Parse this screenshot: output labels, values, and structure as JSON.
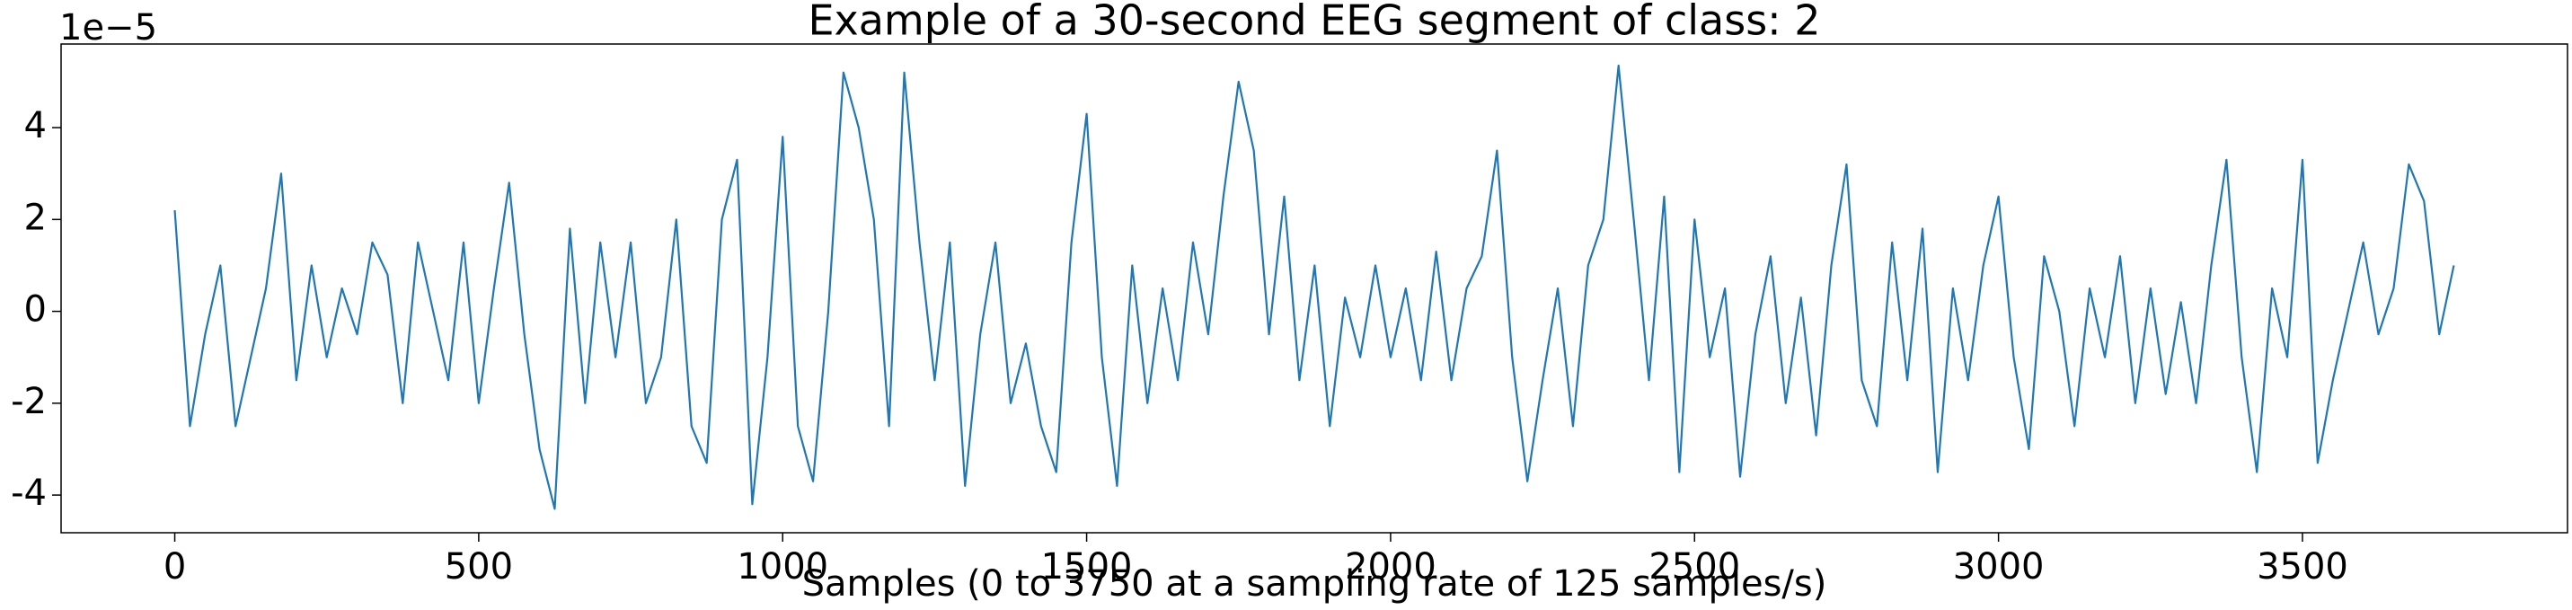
{
  "chart_data": {
    "type": "line",
    "title": "Example of a 30-second EEG segment of class: 2",
    "xlabel": "Samples (0 to 3750 at a sampling rate of 125 samples/s)",
    "y_offset_text": "1e−5",
    "x": [
      0,
      25,
      50,
      75,
      100,
      125,
      150,
      175,
      200,
      225,
      250,
      275,
      300,
      325,
      350,
      375,
      400,
      425,
      450,
      475,
      500,
      525,
      550,
      575,
      600,
      625,
      650,
      675,
      700,
      725,
      750,
      775,
      800,
      825,
      850,
      875,
      900,
      925,
      950,
      975,
      1000,
      1025,
      1050,
      1075,
      1100,
      1125,
      1150,
      1175,
      1200,
      1225,
      1250,
      1275,
      1300,
      1325,
      1350,
      1375,
      1400,
      1425,
      1450,
      1475,
      1500,
      1525,
      1550,
      1575,
      1600,
      1625,
      1650,
      1675,
      1700,
      1725,
      1750,
      1775,
      1800,
      1825,
      1850,
      1875,
      1900,
      1925,
      1950,
      1975,
      2000,
      2025,
      2050,
      2075,
      2100,
      2125,
      2150,
      2175,
      2200,
      2225,
      2250,
      2275,
      2300,
      2325,
      2350,
      2375,
      2400,
      2425,
      2450,
      2475,
      2500,
      2525,
      2550,
      2575,
      2600,
      2625,
      2650,
      2675,
      2700,
      2725,
      2750,
      2775,
      2800,
      2825,
      2850,
      2875,
      2900,
      2925,
      2950,
      2975,
      3000,
      3025,
      3050,
      3075,
      3100,
      3125,
      3150,
      3175,
      3200,
      3225,
      3250,
      3275,
      3300,
      3325,
      3350,
      3375,
      3400,
      3425,
      3450,
      3475,
      3500,
      3525,
      3550,
      3575,
      3600,
      3625,
      3650,
      3675,
      3700,
      3725,
      3749
    ],
    "series": [
      {
        "color": "#1f77b4",
        "values": [
          2.2,
          -2.5,
          -0.5,
          1.0,
          -2.5,
          -1.0,
          0.5,
          3.0,
          -1.5,
          1.0,
          -1.0,
          0.5,
          -0.5,
          1.5,
          0.8,
          -2.0,
          1.5,
          0,
          -1.5,
          1.5,
          -2.0,
          0.5,
          2.8,
          -0.5,
          -3.0,
          -4.3,
          1.8,
          -2.0,
          1.5,
          -1.0,
          1.5,
          -2.0,
          -1.0,
          2.0,
          -2.5,
          -3.3,
          2.0,
          3.3,
          -4.2,
          -1.0,
          3.8,
          -2.5,
          -3.7,
          0,
          5.2,
          4.0,
          2.0,
          -2.5,
          5.2,
          1.5,
          -1.5,
          1.5,
          -3.8,
          -0.5,
          1.5,
          -2.0,
          -0.7,
          -2.5,
          -3.5,
          1.5,
          4.3,
          -1.0,
          -3.8,
          1.0,
          -2.0,
          0.5,
          -1.5,
          1.5,
          -0.5,
          2.5,
          5.0,
          3.5,
          -0.5,
          2.5,
          -1.5,
          1.0,
          -2.5,
          0.3,
          -1.0,
          1.0,
          -1.0,
          0.5,
          -1.5,
          1.3,
          -1.5,
          0.5,
          1.2,
          3.5,
          -1.0,
          -3.7,
          -1.5,
          0.5,
          -2.5,
          1.0,
          2.0,
          5.35,
          2.0,
          -1.5,
          2.5,
          -3.5,
          2.0,
          -1.0,
          0.5,
          -3.6,
          -0.5,
          1.2,
          -2.0,
          0.3,
          -2.7,
          1.0,
          3.2,
          -1.5,
          -2.5,
          1.5,
          -1.5,
          1.8,
          -3.5,
          0.5,
          -1.5,
          1.0,
          2.5,
          -1.0,
          -3.0,
          1.2,
          0,
          -2.5,
          0.5,
          -1.0,
          1.2,
          -2.0,
          0.5,
          -1.8,
          0.2,
          -2.0,
          1.0,
          3.3,
          -1.0,
          -3.5,
          0.5,
          -1.0,
          3.3,
          -3.3,
          -1.5,
          0,
          1.5,
          -0.5,
          0.5,
          3.2,
          2.4,
          -0.5,
          1.0
        ]
      }
    ],
    "xlim": [
      -187,
      3936
    ],
    "xticks": [
      0,
      500,
      1000,
      1500,
      2000,
      2500,
      3000,
      3500
    ],
    "ylim": [
      -4.82,
      5.82
    ],
    "yticks": [
      -4,
      -2,
      0,
      2,
      4
    ]
  }
}
